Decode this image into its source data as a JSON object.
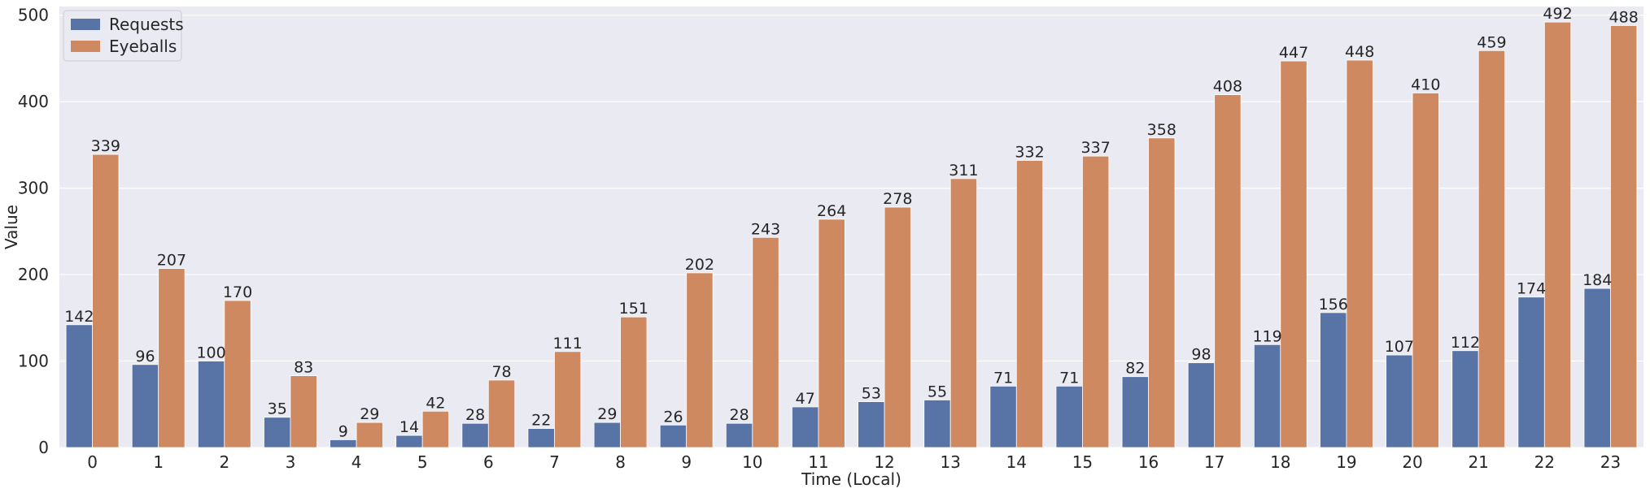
{
  "chart_data": {
    "type": "bar",
    "xlabel": "Time (Local)",
    "ylabel": "Value",
    "ylim": [
      0,
      510
    ],
    "yticks": [
      0,
      100,
      200,
      300,
      400,
      500
    ],
    "grid": true,
    "legend_position": "top-left",
    "categories": [
      "0",
      "1",
      "2",
      "3",
      "4",
      "5",
      "6",
      "7",
      "8",
      "9",
      "10",
      "11",
      "12",
      "13",
      "14",
      "15",
      "16",
      "17",
      "18",
      "19",
      "20",
      "21",
      "22",
      "23"
    ],
    "series": [
      {
        "name": "Requests",
        "color": "#5874a6",
        "values": [
          142,
          96,
          100,
          35,
          9,
          14,
          28,
          22,
          29,
          26,
          28,
          47,
          53,
          55,
          71,
          71,
          82,
          98,
          119,
          156,
          107,
          112,
          174,
          184
        ]
      },
      {
        "name": "Eyeballs",
        "color": "#cf8960",
        "values": [
          339,
          207,
          170,
          83,
          29,
          42,
          78,
          111,
          151,
          202,
          243,
          264,
          278,
          311,
          332,
          337,
          358,
          408,
          447,
          448,
          410,
          459,
          492,
          488
        ]
      }
    ],
    "plot_background": "#eaeaf2",
    "grid_color": "#ffffff"
  }
}
